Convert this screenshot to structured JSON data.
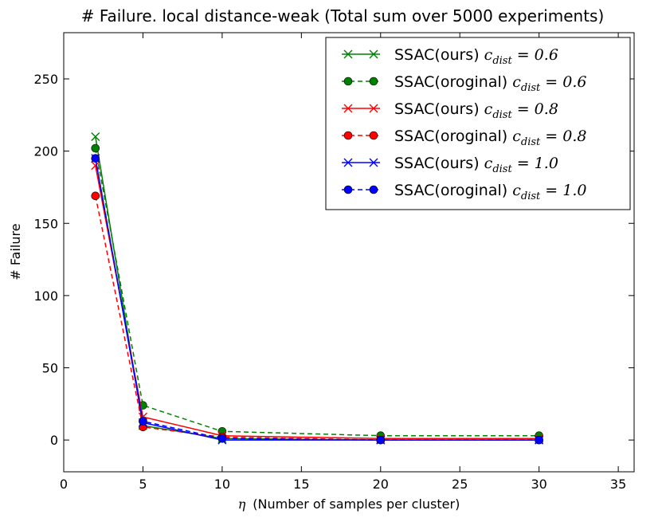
{
  "chart_data": {
    "type": "line",
    "title": "# Failure. local distance-weak (Total sum over 5000 experiments)",
    "xlabel": "η (Number of samples per cluster)",
    "xlabel_symbol": "η",
    "xlabel_text": "(Number of samples per cluster)",
    "ylabel": "# Failure",
    "xlim": [
      0,
      36
    ],
    "ylim": [
      -22,
      282
    ],
    "xticks": [
      0,
      5,
      10,
      15,
      20,
      25,
      30,
      35
    ],
    "yticks": [
      0,
      50,
      100,
      150,
      200,
      250
    ],
    "x": [
      2,
      5,
      10,
      20,
      30
    ],
    "legend_position": "top-right",
    "series": [
      {
        "name": "SSAC(ours) c_dist = 0.6",
        "label_text": "SSAC(ours)",
        "math": "c",
        "math_sub": "dist",
        "math_rest": " = 0.6",
        "color": "#008000",
        "style": "solid",
        "marker": "x",
        "values": [
          210,
          10,
          1,
          0,
          0
        ]
      },
      {
        "name": "SSAC(oroginal) c_dist = 0.6",
        "label_text": "SSAC(oroginal)",
        "math": "c",
        "math_sub": "dist",
        "math_rest": " = 0.6",
        "color": "#008000",
        "style": "dashed",
        "marker": "o",
        "values": [
          202,
          24,
          6,
          3,
          3
        ]
      },
      {
        "name": "SSAC(ours) c_dist = 0.8",
        "label_text": "SSAC(ours)",
        "math": "c",
        "math_sub": "dist",
        "math_rest": " = 0.8",
        "color": "#ff0000",
        "style": "solid",
        "marker": "x",
        "values": [
          190,
          16,
          3,
          1,
          1
        ]
      },
      {
        "name": "SSAC(oroginal) c_dist = 0.8",
        "label_text": "SSAC(oroginal)",
        "math": "c",
        "math_sub": "dist",
        "math_rest": " = 0.8",
        "color": "#ff0000",
        "style": "dashed",
        "marker": "o",
        "values": [
          169,
          9,
          2,
          0,
          0
        ]
      },
      {
        "name": "SSAC(ours) c_dist = 1.0",
        "label_text": "SSAC(ours)",
        "math": "c",
        "math_sub": "dist",
        "math_rest": " = 1.0",
        "color": "#0000ff",
        "style": "solid",
        "marker": "x",
        "values": [
          195,
          12,
          0,
          0,
          0
        ]
      },
      {
        "name": "SSAC(oroginal) c_dist = 1.0",
        "label_text": "SSAC(oroginal)",
        "math": "c",
        "math_sub": "dist",
        "math_rest": " = 1.0",
        "color": "#0000ff",
        "style": "dashed",
        "marker": "o",
        "values": [
          195,
          13,
          1,
          0,
          0
        ]
      }
    ]
  }
}
